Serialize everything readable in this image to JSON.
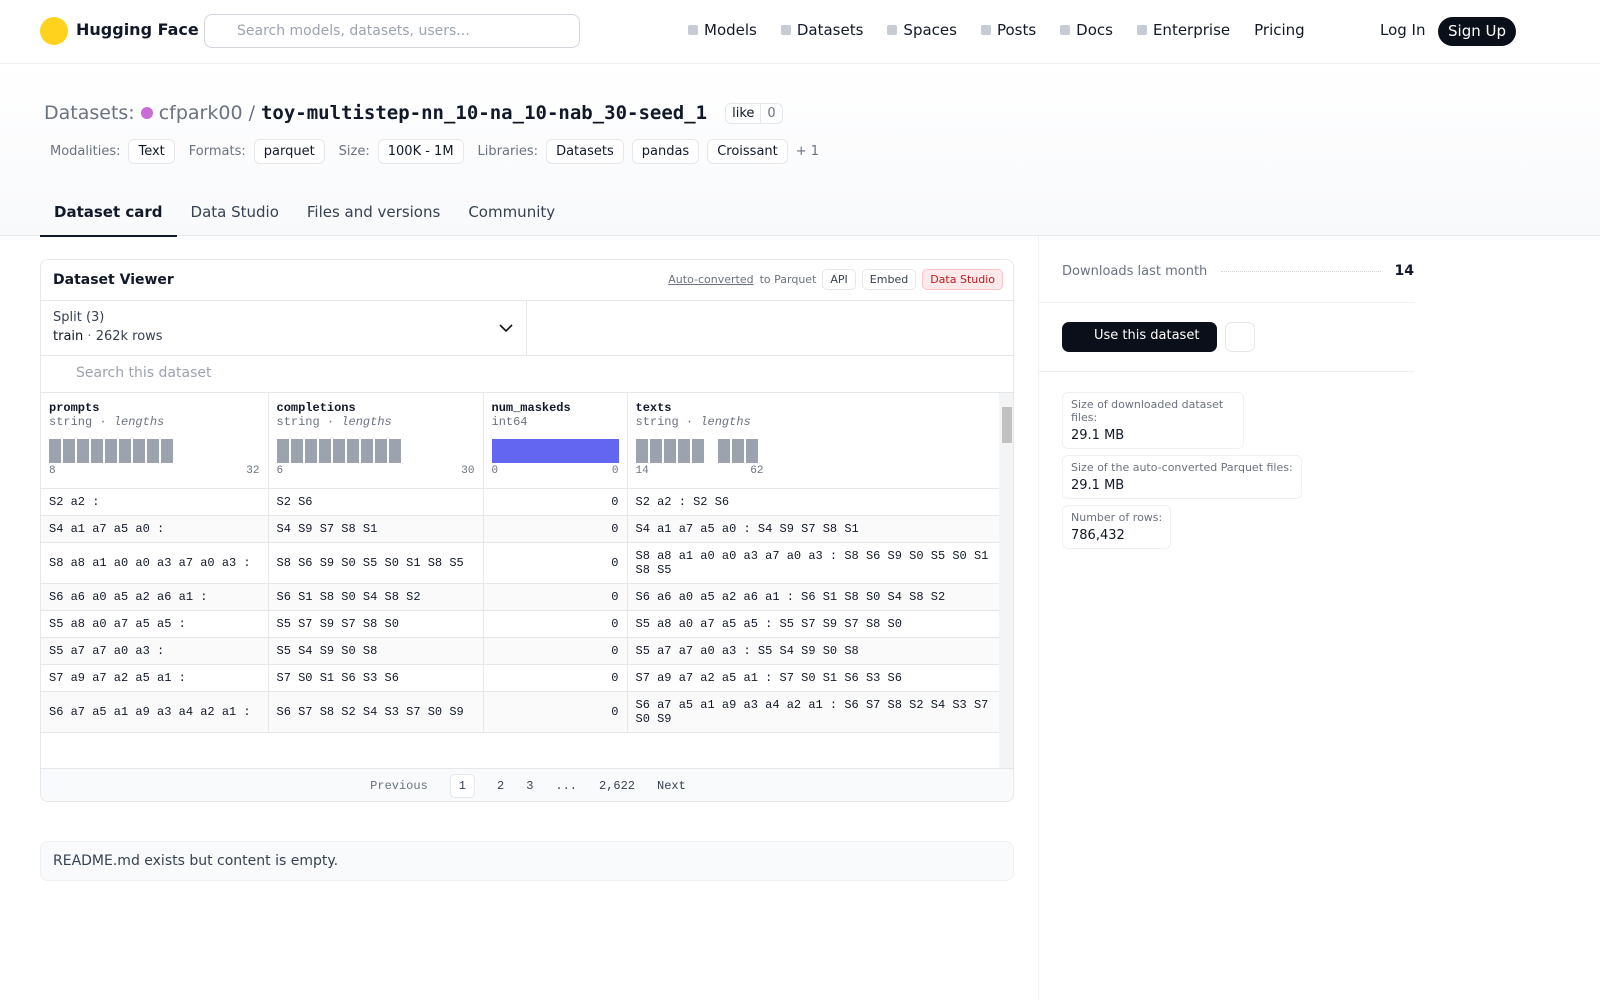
{
  "header": {
    "brand": "Hugging Face",
    "search_placeholder": "Search models, datasets, users...",
    "nav": [
      "Models",
      "Datasets",
      "Spaces",
      "Posts",
      "Docs",
      "Enterprise",
      "Pricing"
    ],
    "login": "Log In",
    "signup": "Sign Up"
  },
  "repo": {
    "kind": "Datasets:",
    "owner": "cfpark00",
    "separator": "/",
    "name": "toy-multistep-nn_10-na_10-nab_30-seed_1",
    "like": "like",
    "likes": 0,
    "tags": [
      {
        "label": "Modalities:",
        "items": [
          "Text"
        ]
      },
      {
        "label": "Formats:",
        "items": [
          "parquet"
        ]
      },
      {
        "label": "Size:",
        "items": [
          "100K - 1M"
        ]
      },
      {
        "label": "Libraries:",
        "items": [
          "Datasets",
          "pandas",
          "Croissant"
        ]
      }
    ],
    "more": "+ 1"
  },
  "tabs": [
    "Dataset card",
    "Data Studio",
    "Files and versions",
    "Community"
  ],
  "viewer": {
    "title": "Dataset Viewer",
    "auto_converted": "Auto-converted",
    "to_parquet": "to Parquet",
    "buttons": [
      "API",
      "Embed",
      "Data Studio"
    ],
    "split_label": "Split (3)",
    "split": "train",
    "dot": "·",
    "rows_count": "262k rows",
    "search_placeholder": "Search this dataset",
    "columns": [
      {
        "name": "prompts",
        "dtype": "string",
        "stat": "lengths",
        "min": 8,
        "max": 32
      },
      {
        "name": "completions",
        "dtype": "string",
        "stat": "lengths",
        "min": 6,
        "max": 30
      },
      {
        "name": "num_maskeds",
        "dtype": "int64",
        "min": 0,
        "max": 0
      },
      {
        "name": "texts",
        "dtype": "string",
        "stat": "lengths",
        "min": 14,
        "max": 62
      }
    ],
    "rows": [
      [
        "S2 a2 :",
        "S2 S6",
        0,
        "S2 a2 : S2 S6"
      ],
      [
        "S4 a1 a7 a5 a0 :",
        "S4 S9 S7 S8 S1",
        0,
        "S4 a1 a7 a5 a0 : S4 S9 S7 S8 S1"
      ],
      [
        "S8 a8 a1 a0 a0 a3 a7 a0 a3 :",
        "S8 S6 S9 S0 S5 S0 S1 S8 S5",
        0,
        "S8 a8 a1 a0 a0 a3 a7 a0 a3 : S8 S6 S9 S0 S5 S0 S1 S8 S5"
      ],
      [
        "S6 a6 a0 a5 a2 a6 a1 :",
        "S6 S1 S8 S0 S4 S8 S2",
        0,
        "S6 a6 a0 a5 a2 a6 a1 : S6 S1 S8 S0 S4 S8 S2"
      ],
      [
        "S5 a8 a0 a7 a5 a5 :",
        "S5 S7 S9 S7 S8 S0",
        0,
        "S5 a8 a0 a7 a5 a5 : S5 S7 S9 S7 S8 S0"
      ],
      [
        "S5 a7 a7 a0 a3 :",
        "S5 S4 S9 S0 S8",
        0,
        "S5 a7 a7 a0 a3 : S5 S4 S9 S0 S8"
      ],
      [
        "S7 a9 a7 a2 a5 a1 :",
        "S7 S0 S1 S6 S3 S6",
        0,
        "S7 a9 a7 a2 a5 a1 : S7 S0 S1 S6 S3 S6"
      ],
      [
        "S6 a7 a5 a1 a9 a3 a4 a2 a1 :",
        "S6 S7 S8 S2 S4 S3 S7 S0 S9",
        0,
        "S6 a7 a5 a1 a9 a3 a4 a2 a1 : S6 S7 S8 S2 S4 S3 S7 S0 S9"
      ]
    ],
    "pagination": {
      "previous": "Previous",
      "pages": [
        "1",
        "2",
        "3",
        "...",
        "2,622"
      ],
      "next": "Next"
    }
  },
  "readme": "README.md exists but content is empty.",
  "sidebar": {
    "downloads_label": "Downloads last month",
    "downloads": 14,
    "use_button": "Use this dataset",
    "stats": [
      {
        "label": "Size of downloaded dataset files:",
        "value": "29.1 MB"
      },
      {
        "label": "Size of the auto-converted Parquet files:",
        "value": "29.1 MB"
      },
      {
        "label": "Number of rows:",
        "value": "786,432"
      }
    ]
  }
}
